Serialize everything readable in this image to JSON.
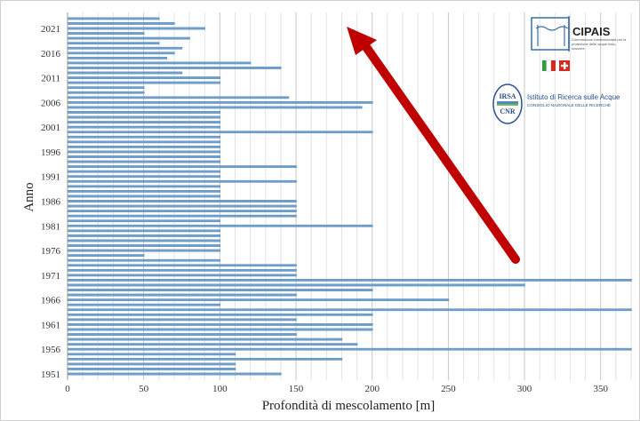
{
  "chart_data": {
    "type": "bar",
    "orientation": "horizontal",
    "xlabel": "Profondità di mescolamento [m]",
    "ylabel": "Anno",
    "xlim": [
      0,
      370
    ],
    "x_ticks": [
      0,
      50,
      100,
      150,
      200,
      250,
      300,
      350
    ],
    "y_tick_labels": [
      "2021",
      "2016",
      "2011",
      "2006",
      "2001",
      "1996",
      "1991",
      "1986",
      "1981",
      "1976",
      "1971",
      "1966",
      "1961",
      "1956",
      "1951"
    ],
    "grid": true,
    "bar_color": "#6fa0cd",
    "categories": [
      1951,
      1952,
      1953,
      1954,
      1955,
      1956,
      1957,
      1958,
      1959,
      1960,
      1961,
      1962,
      1963,
      1964,
      1965,
      1966,
      1967,
      1968,
      1969,
      1970,
      1971,
      1972,
      1973,
      1974,
      1975,
      1976,
      1977,
      1978,
      1979,
      1980,
      1981,
      1982,
      1983,
      1984,
      1985,
      1986,
      1987,
      1988,
      1989,
      1990,
      1991,
      1992,
      1993,
      1994,
      1995,
      1996,
      1997,
      1998,
      1999,
      2000,
      2001,
      2002,
      2003,
      2004,
      2005,
      2006,
      2007,
      2008,
      2009,
      2010,
      2011,
      2012,
      2013,
      2014,
      2015,
      2016,
      2017,
      2018,
      2019,
      2020,
      2021,
      2022,
      2023
    ],
    "values": [
      140,
      110,
      110,
      180,
      110,
      370,
      190,
      180,
      150,
      200,
      200,
      150,
      200,
      370,
      100,
      250,
      150,
      200,
      300,
      370,
      150,
      150,
      150,
      100,
      50,
      100,
      100,
      100,
      100,
      100,
      200,
      100,
      150,
      150,
      150,
      150,
      100,
      100,
      100,
      150,
      100,
      100,
      150,
      100,
      100,
      100,
      100,
      100,
      100,
      200,
      100,
      100,
      100,
      100,
      193,
      200,
      145,
      50,
      50,
      100,
      100,
      75,
      140,
      120,
      65,
      70,
      75,
      60,
      80,
      50,
      90,
      70,
      60
    ]
  },
  "annotation": {
    "arrow_color": "#c00000"
  },
  "logos": {
    "cipais": {
      "name": "CIPAIS",
      "subtitle": "Commissione internazionale per la protezione delle acque italo-svizzere",
      "flag_it": [
        "#2e9b41",
        "#ffffff",
        "#d52b1e"
      ],
      "flag_ch": "#d52b1e"
    },
    "irsa": {
      "badge_top": "IRSA",
      "badge_bottom": "CNR",
      "name": "Istituto di Ricerca sulle Acque",
      "subtitle": "CONSIGLIO NAZIONALE DELLE RICERCHE"
    }
  }
}
